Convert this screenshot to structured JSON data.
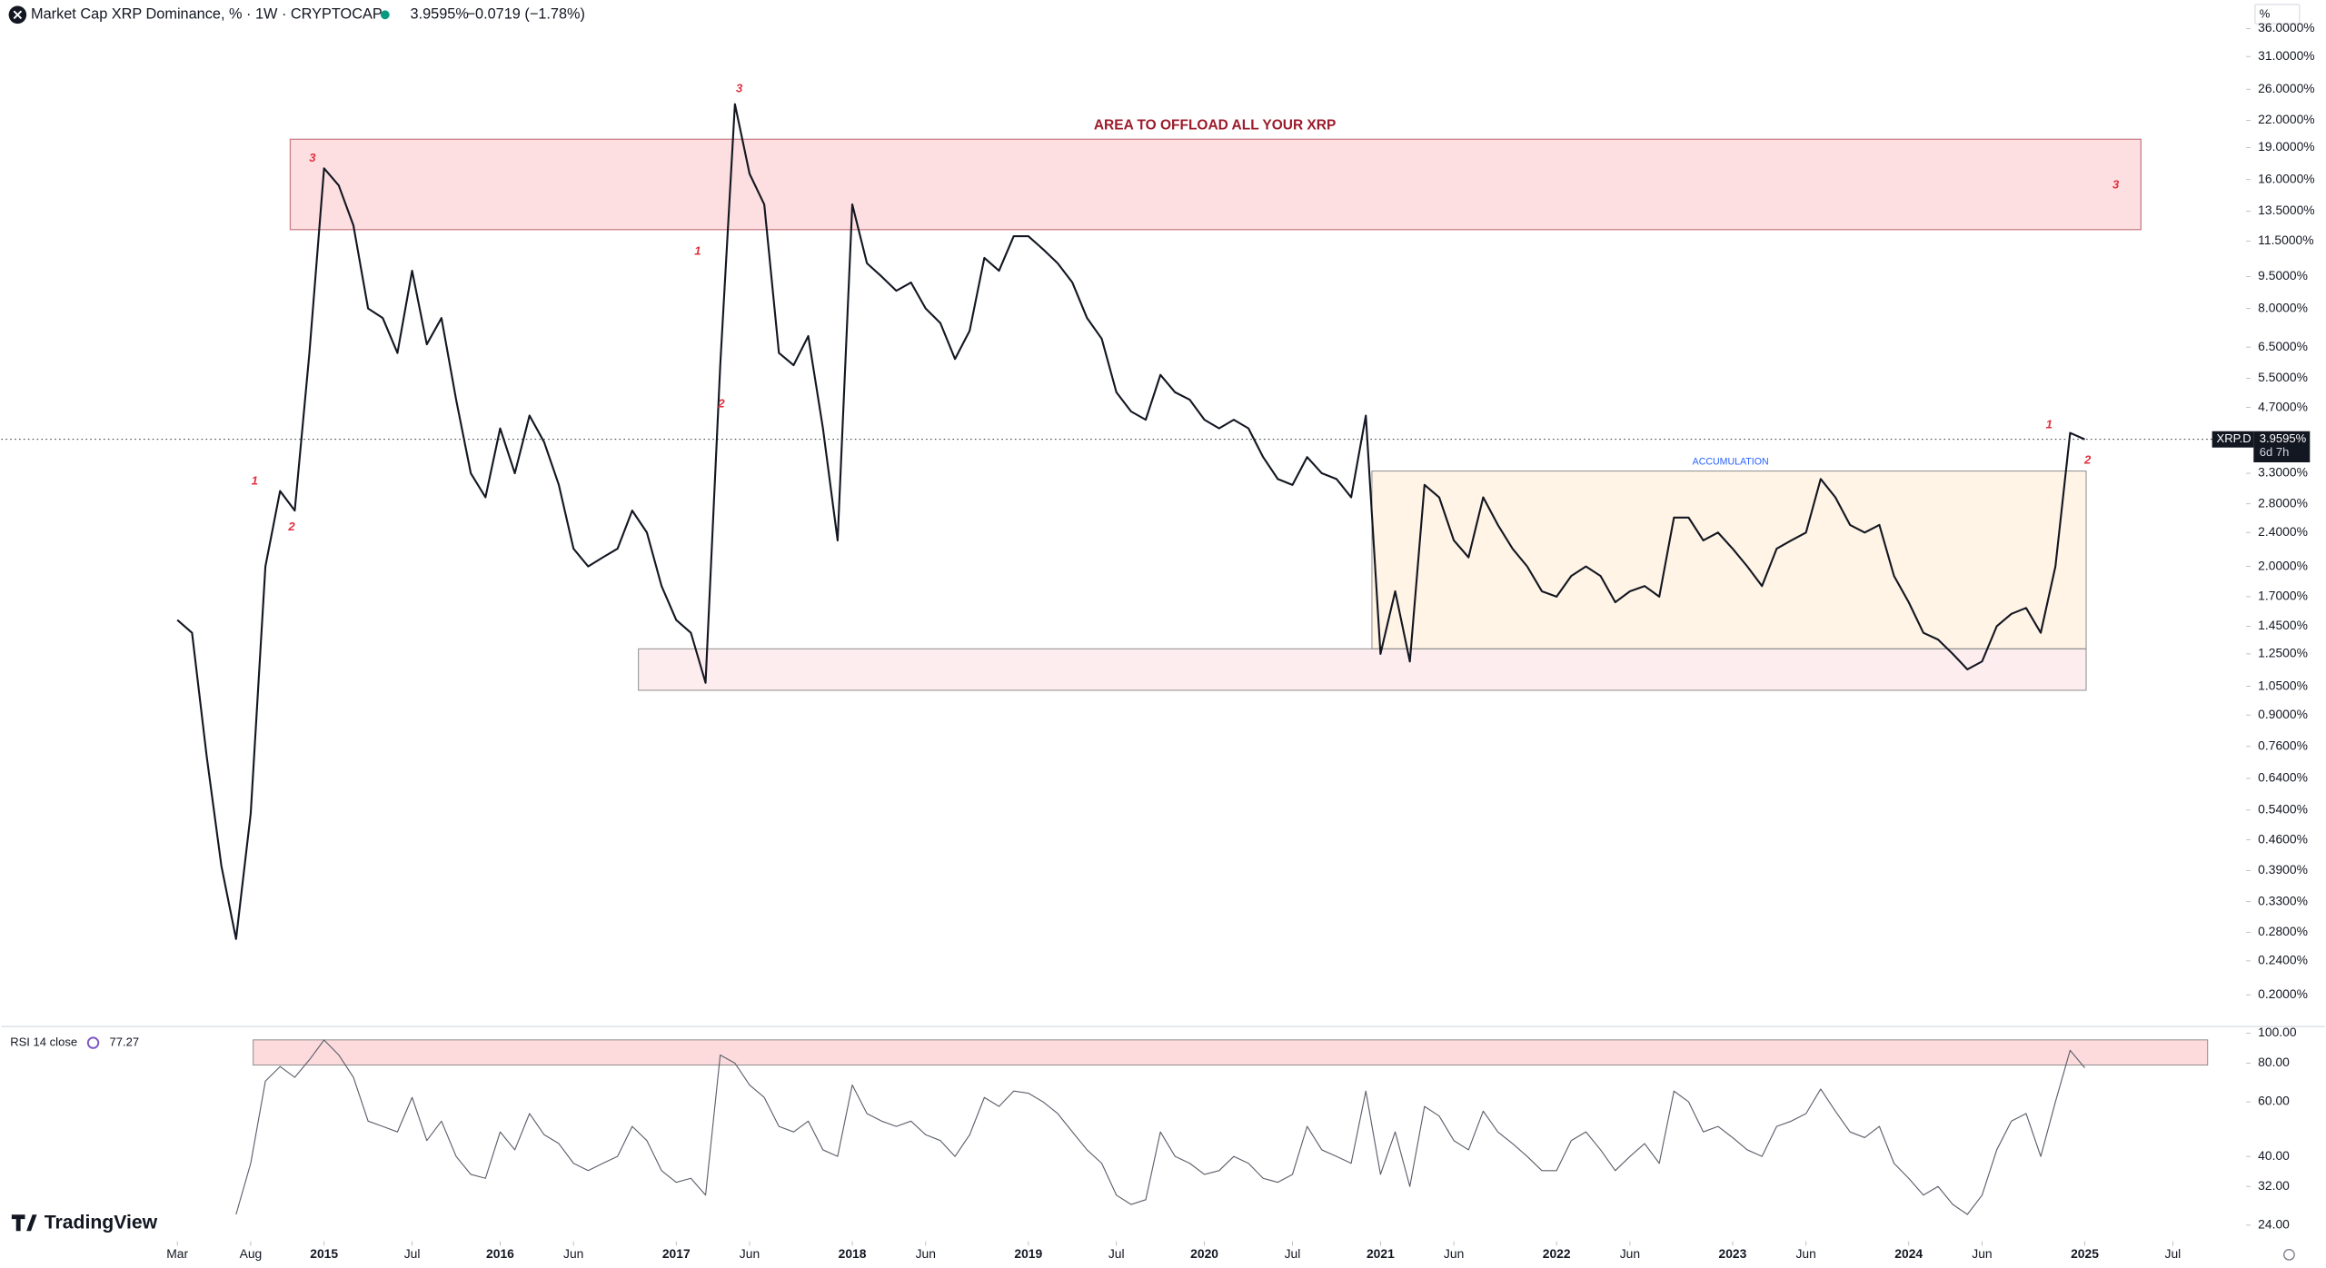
{
  "header": {
    "title": "Market Cap XRP Dominance, % · 1W · CRYPTOCAP",
    "last": "3.9595%",
    "change": "−0.0719 (−1.78%)",
    "unit": "%",
    "countdown": "6d 7h",
    "brand": "TradingView"
  },
  "annotations": [
    "AREA TO OFFLOAD ALL YOUR XRP",
    "ACCUMULATION",
    "3",
    "1",
    "2",
    "3",
    "1",
    "2",
    "3",
    "1",
    "2"
  ],
  "chart_data": [
    {
      "type": "line",
      "log_scale": true,
      "grid": false,
      "x": [
        "2014-03",
        "2014-04",
        "2014-05",
        "2014-06",
        "2014-07",
        "2014-08",
        "2014-09",
        "2014-10",
        "2014-11",
        "2014-12",
        "2015-01",
        "2015-02",
        "2015-03",
        "2015-04",
        "2015-05",
        "2015-06",
        "2015-07",
        "2015-08",
        "2015-09",
        "2015-10",
        "2015-11",
        "2015-12",
        "2016-01",
        "2016-02",
        "2016-03",
        "2016-04",
        "2016-05",
        "2016-06",
        "2016-07",
        "2016-08",
        "2016-09",
        "2016-10",
        "2016-11",
        "2016-12",
        "2017-01",
        "2017-02",
        "2017-03",
        "2017-04",
        "2017-05",
        "2017-06",
        "2017-07",
        "2017-08",
        "2017-09",
        "2017-10",
        "2017-11",
        "2017-12",
        "2018-01",
        "2018-02",
        "2018-03",
        "2018-04",
        "2018-05",
        "2018-06",
        "2018-07",
        "2018-08",
        "2018-09",
        "2018-10",
        "2018-11",
        "2018-12",
        "2019-01",
        "2019-02",
        "2019-03",
        "2019-04",
        "2019-05",
        "2019-06",
        "2019-07",
        "2019-08",
        "2019-09",
        "2019-10",
        "2019-11",
        "2019-12",
        "2020-01",
        "2020-02",
        "2020-03",
        "2020-04",
        "2020-05",
        "2020-06",
        "2020-07",
        "2020-08",
        "2020-09",
        "2020-10",
        "2020-11",
        "2020-12",
        "2021-01",
        "2021-02",
        "2021-03",
        "2021-04",
        "2021-05",
        "2021-06",
        "2021-07",
        "2021-08",
        "2021-09",
        "2021-10",
        "2021-11",
        "2021-12",
        "2022-01",
        "2022-02",
        "2022-03",
        "2022-04",
        "2022-05",
        "2022-06",
        "2022-07",
        "2022-08",
        "2022-09",
        "2022-10",
        "2022-11",
        "2022-12",
        "2023-01",
        "2023-02",
        "2023-03",
        "2023-04",
        "2023-05",
        "2023-06",
        "2023-07",
        "2023-08",
        "2023-09",
        "2023-10",
        "2023-11",
        "2023-12",
        "2024-01",
        "2024-02",
        "2024-03",
        "2024-04",
        "2024-05",
        "2024-06",
        "2024-07",
        "2024-08",
        "2024-09",
        "2024-10",
        "2024-11",
        "2024-12",
        "2025-01"
      ],
      "series": [
        {
          "name": "XRP.D",
          "color": "#131722",
          "values": [
            1.5,
            1.4,
            0.72,
            0.4,
            0.27,
            0.53,
            2.0,
            3.0,
            2.7,
            6.3,
            17,
            15.5,
            12.5,
            8,
            7.6,
            6.3,
            9.8,
            6.6,
            7.6,
            4.9,
            3.3,
            2.9,
            4.2,
            3.3,
            4.5,
            3.9,
            3.1,
            2.2,
            2.0,
            2.1,
            2.2,
            2.7,
            2.4,
            1.8,
            1.5,
            1.4,
            1.07,
            5.9,
            24,
            16.5,
            14,
            6.3,
            5.9,
            6.9,
            4.2,
            2.3,
            14,
            10.2,
            9.5,
            8.8,
            9.2,
            8,
            7.4,
            6.1,
            7.1,
            10.5,
            9.8,
            11.8,
            11.8,
            11,
            10.2,
            9.2,
            7.6,
            6.8,
            5.1,
            4.6,
            4.4,
            5.6,
            5.1,
            4.9,
            4.4,
            4.2,
            4.4,
            4.2,
            3.6,
            3.2,
            3.1,
            3.6,
            3.3,
            3.2,
            2.9,
            4.5,
            1.25,
            1.75,
            1.2,
            3.1,
            2.9,
            2.3,
            2.1,
            2.9,
            2.5,
            2.2,
            2.0,
            1.75,
            1.7,
            1.9,
            2.0,
            1.9,
            1.65,
            1.75,
            1.8,
            1.7,
            2.6,
            2.6,
            2.3,
            2.4,
            2.2,
            2.0,
            1.8,
            2.2,
            2.3,
            2.4,
            3.2,
            2.9,
            2.5,
            2.4,
            2.5,
            1.9,
            1.65,
            1.4,
            1.35,
            1.25,
            1.15,
            1.2,
            1.45,
            1.55,
            1.6,
            1.4,
            2.0,
            4.1,
            3.9595
          ]
        }
      ],
      "xlim": [
        "2013-03",
        "2025-12"
      ],
      "xticks": [
        {
          "value": "2014-03",
          "label": "Mar"
        },
        {
          "value": "2014-08",
          "label": "Aug"
        },
        {
          "value": "2015-01",
          "label": "2015"
        },
        {
          "value": "2015-07",
          "label": "Jul"
        },
        {
          "value": "2016-01",
          "label": "2016"
        },
        {
          "value": "2016-06",
          "label": "Jun"
        },
        {
          "value": "2017-01",
          "label": "2017"
        },
        {
          "value": "2017-06",
          "label": "Jun"
        },
        {
          "value": "2018-01",
          "label": "2018"
        },
        {
          "value": "2018-06",
          "label": "Jun"
        },
        {
          "value": "2019-01",
          "label": "2019"
        },
        {
          "value": "2019-07",
          "label": "Jul"
        },
        {
          "value": "2020-01",
          "label": "2020"
        },
        {
          "value": "2020-07",
          "label": "Jul"
        },
        {
          "value": "2021-01",
          "label": "2021"
        },
        {
          "value": "2021-06",
          "label": "Jun"
        },
        {
          "value": "2022-01",
          "label": "2022"
        },
        {
          "value": "2022-06",
          "label": "Jun"
        },
        {
          "value": "2023-01",
          "label": "2023"
        },
        {
          "value": "2023-06",
          "label": "Jun"
        },
        {
          "value": "2024-01",
          "label": "2024"
        },
        {
          "value": "2024-06",
          "label": "Jun"
        },
        {
          "value": "2025-01",
          "label": "2025"
        },
        {
          "value": "2025-07",
          "label": "Jul"
        }
      ],
      "ylim": [
        0.17,
        42
      ],
      "yticks": [
        {
          "value": 36,
          "label": "36.0000%"
        },
        {
          "value": 31,
          "label": "31.0000%"
        },
        {
          "value": 26,
          "label": "26.0000%"
        },
        {
          "value": 22,
          "label": "22.0000%"
        },
        {
          "value": 19,
          "label": "19.0000%"
        },
        {
          "value": 16,
          "label": "16.0000%"
        },
        {
          "value": 13.5,
          "label": "13.5000%"
        },
        {
          "value": 11.5,
          "label": "11.5000%"
        },
        {
          "value": 9.5,
          "label": "9.5000%"
        },
        {
          "value": 8,
          "label": "8.0000%"
        },
        {
          "value": 6.5,
          "label": "6.5000%"
        },
        {
          "value": 5.5,
          "label": "5.5000%"
        },
        {
          "value": 4.7,
          "label": "4.7000%"
        },
        {
          "value": 3.3,
          "label": "3.3000%"
        },
        {
          "value": 2.8,
          "label": "2.8000%"
        },
        {
          "value": 2.4,
          "label": "2.4000%"
        },
        {
          "value": 2,
          "label": "2.0000%"
        },
        {
          "value": 1.7,
          "label": "1.7000%"
        },
        {
          "value": 1.45,
          "label": "1.4500%"
        },
        {
          "value": 1.25,
          "label": "1.2500%"
        },
        {
          "value": 1.05,
          "label": "1.0500%"
        },
        {
          "value": 0.9,
          "label": "0.9000%"
        },
        {
          "value": 0.76,
          "label": "0.7600%"
        },
        {
          "value": 0.64,
          "label": "0.6400%"
        },
        {
          "value": 0.54,
          "label": "0.5400%"
        },
        {
          "value": 0.46,
          "label": "0.4600%"
        },
        {
          "value": 0.39,
          "label": "0.3900%"
        },
        {
          "value": 0.33,
          "label": "0.3300%"
        },
        {
          "value": 0.28,
          "label": "0.2800%"
        },
        {
          "value": 0.24,
          "label": "0.2400%"
        },
        {
          "value": 0.2,
          "label": "0.2000%"
        }
      ]
    },
    {
      "type": "line",
      "log_scale": true,
      "grid": false,
      "x": [
        "2014-03",
        "2014-04",
        "2014-05",
        "2014-06",
        "2014-07",
        "2014-08",
        "2014-09",
        "2014-10",
        "2014-11",
        "2014-12",
        "2015-01",
        "2015-02",
        "2015-03",
        "2015-04",
        "2015-05",
        "2015-06",
        "2015-07",
        "2015-08",
        "2015-09",
        "2015-10",
        "2015-11",
        "2015-12",
        "2016-01",
        "2016-02",
        "2016-03",
        "2016-04",
        "2016-05",
        "2016-06",
        "2016-07",
        "2016-08",
        "2016-09",
        "2016-10",
        "2016-11",
        "2016-12",
        "2017-01",
        "2017-02",
        "2017-03",
        "2017-04",
        "2017-05",
        "2017-06",
        "2017-07",
        "2017-08",
        "2017-09",
        "2017-10",
        "2017-11",
        "2017-12",
        "2018-01",
        "2018-02",
        "2018-03",
        "2018-04",
        "2018-05",
        "2018-06",
        "2018-07",
        "2018-08",
        "2018-09",
        "2018-10",
        "2018-11",
        "2018-12",
        "2019-01",
        "2019-02",
        "2019-03",
        "2019-04",
        "2019-05",
        "2019-06",
        "2019-07",
        "2019-08",
        "2019-09",
        "2019-10",
        "2019-11",
        "2019-12",
        "2020-01",
        "2020-02",
        "2020-03",
        "2020-04",
        "2020-05",
        "2020-06",
        "2020-07",
        "2020-08",
        "2020-09",
        "2020-10",
        "2020-11",
        "2020-12",
        "2021-01",
        "2021-02",
        "2021-03",
        "2021-04",
        "2021-05",
        "2021-06",
        "2021-07",
        "2021-08",
        "2021-09",
        "2021-10",
        "2021-11",
        "2021-12",
        "2022-01",
        "2022-02",
        "2022-03",
        "2022-04",
        "2022-05",
        "2022-06",
        "2022-07",
        "2022-08",
        "2022-09",
        "2022-10",
        "2022-11",
        "2022-12",
        "2023-01",
        "2023-02",
        "2023-03",
        "2023-04",
        "2023-05",
        "2023-06",
        "2023-07",
        "2023-08",
        "2023-09",
        "2023-10",
        "2023-11",
        "2023-12",
        "2024-01",
        "2024-02",
        "2024-03",
        "2024-04",
        "2024-05",
        "2024-06",
        "2024-07",
        "2024-08",
        "2024-09",
        "2024-10",
        "2024-11",
        "2024-12",
        "2025-01"
      ],
      "series": [
        {
          "name": "RSI 14 close",
          "color": "#5d606b",
          "values": [
            null,
            null,
            null,
            null,
            26,
            38,
            70,
            78,
            72,
            82,
            95,
            85,
            72,
            52,
            50,
            48,
            62,
            45,
            52,
            40,
            35,
            34,
            48,
            42,
            55,
            47,
            44,
            38,
            36,
            38,
            40,
            50,
            45,
            36,
            33,
            34,
            30,
            85,
            80,
            68,
            62,
            50,
            48,
            52,
            42,
            40,
            68,
            55,
            52,
            50,
            52,
            47,
            45,
            40,
            47,
            62,
            58,
            65,
            64,
            60,
            55,
            48,
            42,
            38,
            30,
            28,
            29,
            48,
            40,
            38,
            35,
            36,
            40,
            38,
            34,
            33,
            35,
            50,
            42,
            40,
            38,
            65,
            35,
            48,
            32,
            58,
            54,
            45,
            42,
            56,
            48,
            44,
            40,
            36,
            36,
            45,
            48,
            42,
            36,
            40,
            44,
            38,
            65,
            60,
            48,
            50,
            46,
            42,
            40,
            50,
            52,
            55,
            66,
            56,
            48,
            46,
            50,
            38,
            34,
            30,
            32,
            28,
            26,
            30,
            42,
            52,
            55,
            40,
            60,
            88,
            77.27
          ]
        }
      ],
      "xlim": [
        "2013-03",
        "2025-12"
      ],
      "ylim": [
        22,
        105
      ],
      "yticks": [
        {
          "value": 100,
          "label": "100.00"
        },
        {
          "value": 80,
          "label": "80.00"
        },
        {
          "value": 60,
          "label": "60.00"
        },
        {
          "value": 40,
          "label": "40.00"
        },
        {
          "value": 32,
          "label": "32.00"
        },
        {
          "value": 24,
          "label": "24.00"
        }
      ]
    }
  ]
}
